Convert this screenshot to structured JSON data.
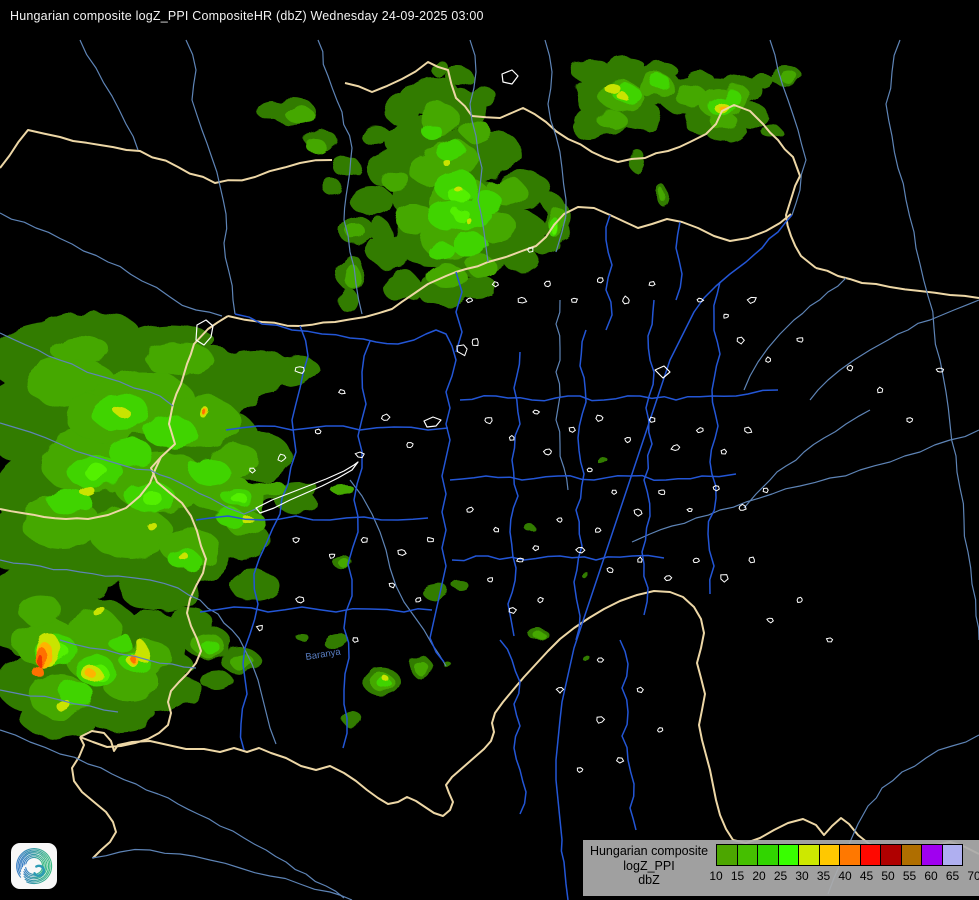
{
  "header": {
    "title": "Hungarian composite logZ_PPI CompositeHR (dbZ) Wednesday 24-09-2025 03:00",
    "product": "Hungarian composite logZ_PPI CompositeHR",
    "unit": "dbZ",
    "datetime": "Wednesday 24-09-2025 03:00"
  },
  "map": {
    "county_label": "Baranya",
    "colors": {
      "background": "#000000",
      "country_border": "#EDD7A6",
      "river": "#5E84B6",
      "county_border": "#2356D6",
      "settlement_outline": "#FFFFFF",
      "radar_levels": [
        "#337C00",
        "#44A800",
        "#3FD400",
        "#52F000",
        "#C9E400",
        "#FFB400",
        "#FF7000",
        "#F03000"
      ]
    }
  },
  "legend": {
    "line1": "Hungarian composite",
    "line2": "logZ_PPI",
    "line3": "dbZ",
    "background": "#ACACAC",
    "ticks": [
      "10",
      "15",
      "20",
      "25",
      "30",
      "35",
      "40",
      "45",
      "50",
      "55",
      "60",
      "65",
      "70"
    ],
    "colors": [
      "#4CA600",
      "#45BF00",
      "#31D500",
      "#38FF00",
      "#CDE800",
      "#FFC800",
      "#FF7800",
      "#FF0800",
      "#AF0000",
      "#AF6E00",
      "#A000F0",
      "#AFAFF0"
    ]
  },
  "logo": {
    "icon": "radar-spiral-logo"
  }
}
